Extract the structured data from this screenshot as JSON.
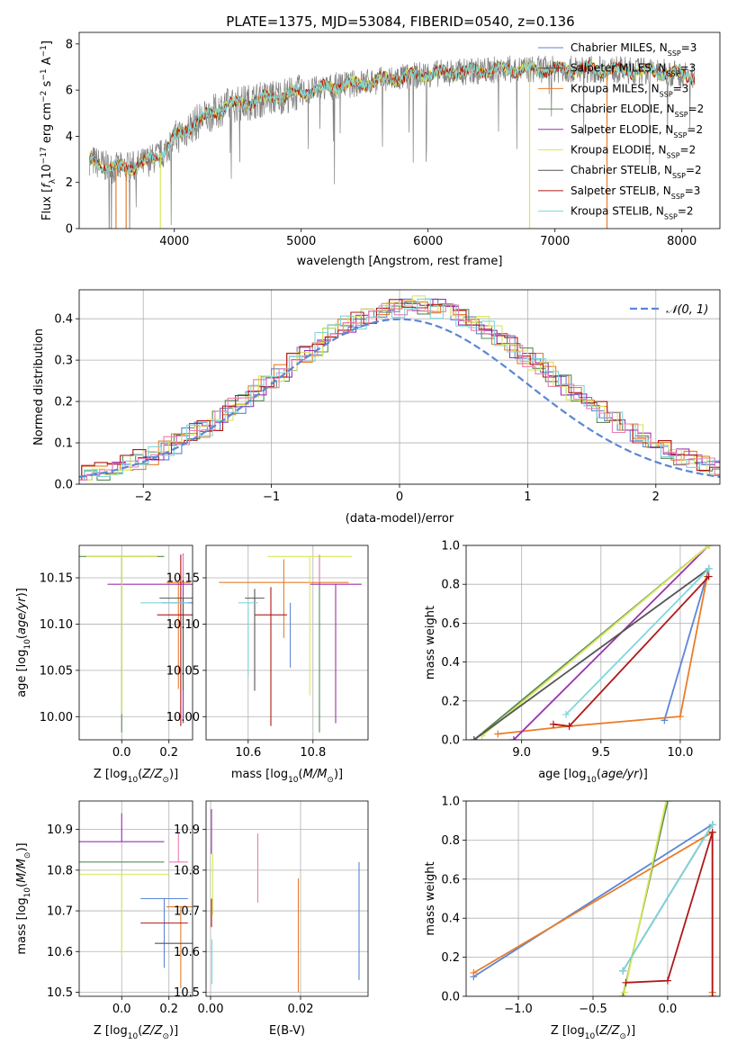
{
  "title": "PLATE=1375, MJD=53084, FIBERID=0540, z=0.136",
  "colors": {
    "Chabrier MILES": "#5b86d6",
    "Salpeter MILES": "#444444",
    "Kroupa MILES": "#e87d2a",
    "Chabrier ELODIE": "#5a8a5a",
    "Salpeter ELODIE": "#9b30b0",
    "Kroupa ELODIE": "#d8e85a",
    "Chabrier STELIB": "#555555",
    "Salpeter STELIB": "#b01818",
    "Kroupa STELIB": "#7fd6dc",
    "spectrum": "#808080",
    "pink": "#e87fb0"
  },
  "chart_data": [
    {
      "id": "spectrum",
      "type": "line",
      "xlabel": "wavelength [Angstrom, rest frame]",
      "ylabel": "Flux [f_λ10^{-17} erg cm^{-2} s^{-1} A^{-1}]",
      "xlim": [
        3250,
        8300
      ],
      "ylim": [
        0,
        8.5
      ],
      "xticks": [
        4000,
        5000,
        6000,
        7000,
        8000
      ],
      "yticks": [
        0,
        2,
        4,
        6,
        8
      ],
      "legend_position": "top-right",
      "legend": [
        {
          "label": "Chabrier MILES, N",
          "sub": "SSP",
          "suffix": "=3"
        },
        {
          "label": "Salpeter MILES, N",
          "sub": "SSP",
          "suffix": "=3"
        },
        {
          "label": "Kroupa MILES, N",
          "sub": "SSP",
          "suffix": "=3"
        },
        {
          "label": "Chabrier ELODIE, N",
          "sub": "SSP",
          "suffix": "=2"
        },
        {
          "label": "Salpeter ELODIE, N",
          "sub": "SSP",
          "suffix": "=2"
        },
        {
          "label": "Kroupa ELODIE, N",
          "sub": "SSP",
          "suffix": "=2"
        },
        {
          "label": "Chabrier STELIB, N",
          "sub": "SSP",
          "suffix": "=2"
        },
        {
          "label": "Salpeter STELIB, N",
          "sub": "SSP",
          "suffix": "=3"
        },
        {
          "label": "Kroupa STELIB, N",
          "sub": "SSP",
          "suffix": "=2"
        }
      ],
      "continuum": [
        [
          3330,
          3.0
        ],
        [
          3500,
          2.6
        ],
        [
          3700,
          2.7
        ],
        [
          3900,
          3.2
        ],
        [
          4000,
          3.9
        ],
        [
          4200,
          4.7
        ],
        [
          4400,
          5.3
        ],
        [
          4700,
          5.6
        ],
        [
          5000,
          5.9
        ],
        [
          5300,
          6.2
        ],
        [
          5600,
          6.4
        ],
        [
          6000,
          6.7
        ],
        [
          6300,
          6.8
        ],
        [
          6600,
          6.9
        ],
        [
          7000,
          6.9
        ],
        [
          7400,
          6.9
        ],
        [
          7800,
          6.8
        ],
        [
          8100,
          6.6
        ]
      ]
    },
    {
      "id": "residuals",
      "type": "histogram",
      "xlabel": "(data-model)/error",
      "ylabel": "Normed distribution",
      "xlim": [
        -2.5,
        2.5
      ],
      "ylim": [
        0,
        0.47
      ],
      "xticks": [
        -2,
        -1,
        0,
        1,
        2
      ],
      "yticks": [
        0.0,
        0.1,
        0.2,
        0.3,
        0.4
      ],
      "legend_position": "top-right",
      "legend": [
        "𝒩(0, 1)"
      ],
      "grid": true
    },
    {
      "id": "age_vs_Z",
      "type": "errorbar",
      "xlabel": "Z [log10(Z/Z☉)]",
      "ylabel": "age [log10(age/yr)]",
      "xlim": [
        -0.18,
        0.3
      ],
      "ylim": [
        9.975,
        10.185
      ],
      "xticks": [
        0.0,
        0.2
      ],
      "yticks": [
        10.0,
        10.05,
        10.1,
        10.15
      ],
      "points": [
        {
          "series": "Chabrier MILES",
          "x": 0.25,
          "y": 10.123,
          "xerr": 0.08,
          "yerr": [
            0.0,
            0.0
          ]
        },
        {
          "series": "Salpeter MILES",
          "x": 0.25,
          "y": 10.145,
          "xerr": 0.0,
          "yerr": [
            0.0,
            0.0
          ]
        },
        {
          "series": "Kroupa MILES",
          "x": 0.24,
          "y": 10.145,
          "xerr": 0.05,
          "yerr": [
            0.115,
            0.0
          ]
        },
        {
          "series": "Chabrier ELODIE",
          "x": 0.0,
          "y": 10.173,
          "xerr": 0.18,
          "yerr": [
            0.19,
            0.0
          ]
        },
        {
          "series": "Salpeter ELODIE",
          "x": 0.26,
          "y": 10.143,
          "xerr": 0.32,
          "yerr": [
            0.15,
            0.033
          ]
        },
        {
          "series": "Kroupa ELODIE",
          "x": 0.0,
          "y": 10.173,
          "xerr": 0.15,
          "yerr": [
            0.17,
            0.0
          ]
        },
        {
          "series": "Chabrier STELIB",
          "x": 0.26,
          "y": 10.128,
          "xerr": 0.1,
          "yerr": [
            0.1,
            0.0
          ]
        },
        {
          "series": "Salpeter STELIB",
          "x": 0.25,
          "y": 10.11,
          "xerr": 0.1,
          "yerr": [
            0.12,
            0.065
          ]
        },
        {
          "series": "Kroupa STELIB",
          "x": 0.18,
          "y": 10.123,
          "xerr": 0.1,
          "yerr": [
            0.0,
            0.0
          ]
        },
        {
          "series": "pink",
          "x": 0.26,
          "y": 10.145,
          "xerr": 0.0,
          "yerr": [
            0.0,
            0.03
          ]
        }
      ]
    },
    {
      "id": "age_vs_mass",
      "type": "errorbar",
      "xlabel": "mass [log10(M/M☉)]",
      "ylabel": "",
      "xlim": [
        10.47,
        10.97
      ],
      "ylim": [
        9.975,
        10.185
      ],
      "xticks": [
        10.6,
        10.8
      ],
      "yticks": [
        10.0,
        10.05,
        10.1,
        10.15
      ],
      "points": [
        {
          "series": "Chabrier MILES",
          "x": 10.73,
          "y": 10.123,
          "xerr": 0.0,
          "yerr": [
            0.07,
            0.0
          ]
        },
        {
          "series": "Kroupa MILES",
          "x": 10.71,
          "y": 10.145,
          "xerr": 0.2,
          "yerr": [
            0.06,
            0.025
          ]
        },
        {
          "series": "Chabrier ELODIE",
          "x": 10.82,
          "y": 10.173,
          "xerr": 0.0,
          "yerr": [
            0.19,
            0.0
          ]
        },
        {
          "series": "Salpeter ELODIE",
          "x": 10.87,
          "y": 10.143,
          "xerr": 0.08,
          "yerr": [
            0.15,
            0.0
          ]
        },
        {
          "series": "Kroupa ELODIE",
          "x": 10.79,
          "y": 10.173,
          "xerr": 0.13,
          "yerr": [
            0.15,
            0.0
          ]
        },
        {
          "series": "Chabrier STELIB",
          "x": 10.62,
          "y": 10.128,
          "xerr": 0.03,
          "yerr": [
            0.1,
            0.01
          ]
        },
        {
          "series": "Salpeter STELIB",
          "x": 10.67,
          "y": 10.11,
          "xerr": 0.05,
          "yerr": [
            0.12,
            0.03
          ]
        },
        {
          "series": "Kroupa STELIB",
          "x": 10.6,
          "y": 10.123,
          "xerr": 0.03,
          "yerr": [
            0.08,
            0.0
          ]
        },
        {
          "series": "pink",
          "x": 10.82,
          "y": 10.145,
          "xerr": 0.0,
          "yerr": [
            0.0,
            0.03
          ]
        }
      ]
    },
    {
      "id": "massweight_vs_age",
      "type": "line",
      "xlabel": "age [log10(age/yr)]",
      "ylabel": "mass weight",
      "xlim": [
        8.65,
        10.25
      ],
      "ylim": [
        0,
        1
      ],
      "xticks": [
        9.0,
        9.5,
        10.0
      ],
      "yticks": [
        0.0,
        0.2,
        0.4,
        0.6,
        0.8,
        1.0
      ],
      "series": [
        {
          "name": "Chabrier MILES",
          "points": [
            [
              9.9,
              0.1
            ],
            [
              10.18,
              0.88
            ]
          ]
        },
        {
          "name": "Kroupa MILES",
          "points": [
            [
              8.85,
              0.03
            ],
            [
              9.3,
              0.07
            ],
            [
              10.0,
              0.12
            ],
            [
              10.17,
              0.84
            ]
          ]
        },
        {
          "name": "Chabrier ELODIE",
          "points": [
            [
              8.7,
              0.0
            ],
            [
              10.18,
              1.0
            ]
          ]
        },
        {
          "name": "Salpeter ELODIE",
          "points": [
            [
              8.95,
              0.0
            ],
            [
              10.18,
              1.0
            ]
          ]
        },
        {
          "name": "Kroupa ELODIE",
          "points": [
            [
              8.75,
              0.02
            ],
            [
              10.18,
              1.0
            ]
          ]
        },
        {
          "name": "Chabrier STELIB",
          "points": [
            [
              8.7,
              0.0
            ],
            [
              10.18,
              0.88
            ]
          ]
        },
        {
          "name": "Salpeter STELIB",
          "points": [
            [
              9.2,
              0.08
            ],
            [
              9.3,
              0.07
            ],
            [
              10.18,
              0.84
            ]
          ]
        },
        {
          "name": "Kroupa STELIB",
          "points": [
            [
              9.28,
              0.13
            ],
            [
              10.18,
              0.88
            ]
          ]
        }
      ]
    },
    {
      "id": "mass_vs_Z",
      "type": "errorbar",
      "xlabel": "Z [log10(Z/Z☉)]",
      "ylabel": "mass [log10(M/M☉)]",
      "xlim": [
        -0.18,
        0.3
      ],
      "ylim": [
        10.49,
        10.97
      ],
      "xticks": [
        0.0,
        0.2
      ],
      "yticks": [
        10.5,
        10.6,
        10.7,
        10.8,
        10.9
      ],
      "points": [
        {
          "series": "Chabrier MILES",
          "x": 0.18,
          "y": 10.73,
          "xerr": 0.1,
          "yerr": [
            0.17,
            0.0
          ]
        },
        {
          "series": "Kroupa MILES",
          "x": 0.25,
          "y": 10.71,
          "xerr": 0.06,
          "yerr": [
            0.2,
            0.0
          ]
        },
        {
          "series": "Chabrier ELODIE",
          "x": 0.0,
          "y": 10.82,
          "xerr": 0.18,
          "yerr": [
            0.0,
            0.0
          ]
        },
        {
          "series": "Salpeter ELODIE",
          "x": 0.0,
          "y": 10.87,
          "xerr": 0.18,
          "yerr": [
            0.0,
            0.07
          ]
        },
        {
          "series": "Kroupa ELODIE",
          "x": 0.0,
          "y": 10.79,
          "xerr": 0.2,
          "yerr": [
            0.2,
            0.0
          ]
        },
        {
          "series": "Chabrier STELIB",
          "x": 0.24,
          "y": 10.62,
          "xerr": 0.1,
          "yerr": [
            0.0,
            0.0
          ]
        },
        {
          "series": "Salpeter STELIB",
          "x": 0.18,
          "y": 10.67,
          "xerr": 0.1,
          "yerr": [
            0.0,
            0.0
          ]
        },
        {
          "series": "Kroupa STELIB",
          "x": 0.0,
          "y": 10.6,
          "xerr": 0.0,
          "yerr": [
            0.0,
            0.0
          ]
        },
        {
          "series": "pink",
          "x": 0.24,
          "y": 10.82,
          "xerr": 0.04,
          "yerr": [
            0.0,
            0.07
          ]
        }
      ]
    },
    {
      "id": "mass_vs_EBV",
      "type": "errorbar",
      "xlabel": "E(B-V)",
      "ylabel": "",
      "xlim": [
        -0.001,
        0.035
      ],
      "ylim": [
        10.49,
        10.97
      ],
      "xticks": [
        0.0,
        0.02
      ],
      "yticks": [
        10.5,
        10.6,
        10.7,
        10.8,
        10.9
      ],
      "points": [
        {
          "series": "Chabrier MILES",
          "x": 0.033,
          "y": 10.7,
          "xerr": 0.0,
          "yerr": [
            0.17,
            0.12
          ]
        },
        {
          "series": "Kroupa MILES",
          "x": 0.0195,
          "y": 10.68,
          "xerr": 0.0,
          "yerr": [
            0.18,
            0.1
          ]
        },
        {
          "series": "pink",
          "x": 0.0105,
          "y": 10.81,
          "xerr": 0.0,
          "yerr": [
            0.09,
            0.08
          ]
        },
        {
          "series": "Salpeter ELODIE",
          "x": 0.0002,
          "y": 10.88,
          "xerr": 0.0,
          "yerr": [
            0.04,
            0.07
          ]
        },
        {
          "series": "Kroupa ELODIE",
          "x": 0.0005,
          "y": 10.79,
          "xerr": 0.0,
          "yerr": [
            0.1,
            0.05
          ]
        },
        {
          "series": "Salpeter STELIB",
          "x": 0.0002,
          "y": 10.69,
          "xerr": 0.0,
          "yerr": [
            0.03,
            0.04
          ]
        },
        {
          "series": "Kroupa STELIB",
          "x": 0.0003,
          "y": 10.6,
          "xerr": 0.0,
          "yerr": [
            0.08,
            0.03
          ]
        }
      ]
    },
    {
      "id": "massweight_vs_Z",
      "type": "line",
      "xlabel": "Z [log10(Z/Z☉)]",
      "ylabel": "mass weight",
      "xlim": [
        -1.35,
        0.35
      ],
      "ylim": [
        0,
        1
      ],
      "xticks": [
        -1.0,
        -0.5,
        0.0
      ],
      "yticks": [
        0.0,
        0.2,
        0.4,
        0.6,
        0.8,
        1.0
      ],
      "series": [
        {
          "name": "Chabrier MILES",
          "points": [
            [
              -1.3,
              0.1
            ],
            [
              0.3,
              0.88
            ]
          ]
        },
        {
          "name": "Kroupa MILES",
          "points": [
            [
              -1.3,
              0.12
            ],
            [
              0.3,
              0.84
            ],
            [
              0.3,
              0.02
            ]
          ]
        },
        {
          "name": "Chabrier ELODIE",
          "points": [
            [
              -0.3,
              0.0
            ],
            [
              0.0,
              1.0
            ]
          ]
        },
        {
          "name": "Kroupa ELODIE",
          "points": [
            [
              -0.29,
              0.02
            ],
            [
              -0.01,
              1.0
            ]
          ]
        },
        {
          "name": "Chabrier STELIB",
          "points": [
            [
              -0.3,
              0.13
            ],
            [
              0.3,
              0.88
            ]
          ]
        },
        {
          "name": "Salpeter STELIB",
          "points": [
            [
              -0.28,
              0.07
            ],
            [
              0.0,
              0.08
            ],
            [
              0.3,
              0.84
            ],
            [
              0.3,
              0.0
            ]
          ]
        },
        {
          "name": "Kroupa STELIB",
          "points": [
            [
              -0.3,
              0.13
            ],
            [
              0.3,
              0.88
            ]
          ]
        }
      ]
    }
  ]
}
